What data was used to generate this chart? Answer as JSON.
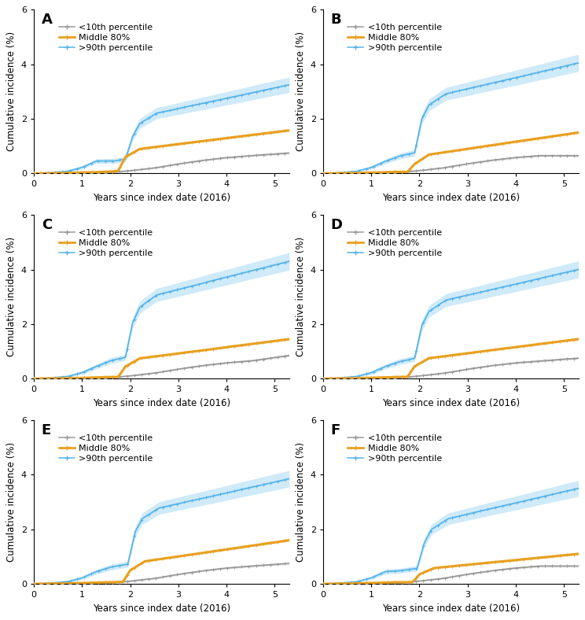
{
  "panels": [
    "A",
    "B",
    "C",
    "D",
    "E",
    "F"
  ],
  "xlabel": "Years since index date (2016)",
  "ylabel": "Cumulative incidence (%)",
  "ylim": [
    0,
    6
  ],
  "xlim": [
    0,
    5.3
  ],
  "yticks": [
    0,
    2,
    4,
    6
  ],
  "xticks": [
    0,
    1,
    2,
    3,
    4,
    5
  ],
  "colors": {
    "low": "#999999",
    "mid": "#E8A020",
    "high": "#56B4E9"
  },
  "ci_colors": {
    "low": "#BBBBBB",
    "mid": "#F0C060",
    "high": "#ACD8F0"
  },
  "legend_labels": [
    "<10th percentile",
    "Middle 80%",
    ">90th percentile"
  ],
  "panels_config": {
    "A": {
      "high_final": 3.25,
      "high_at_jump": 1.35,
      "high_jump_t": 2.05,
      "mid_final": 1.58,
      "mid_jump_t": 1.9,
      "mid_at_jump": 0.6,
      "low_final": 0.75,
      "low_slow_start": true
    },
    "B": {
      "high_final": 4.05,
      "high_at_jump": 2.0,
      "high_jump_t": 2.05,
      "mid_final": 1.5,
      "mid_jump_t": 1.9,
      "mid_at_jump": 0.35,
      "low_final": 0.45,
      "low_slow_start": true
    },
    "C": {
      "high_final": 4.3,
      "high_at_jump": 2.05,
      "high_jump_t": 2.05,
      "mid_final": 1.45,
      "mid_jump_t": 1.9,
      "mid_at_jump": 0.45,
      "low_final": 0.85,
      "low_slow_start": true
    },
    "D": {
      "high_final": 4.0,
      "high_at_jump": 1.95,
      "high_jump_t": 2.05,
      "mid_final": 1.45,
      "mid_jump_t": 1.9,
      "mid_at_jump": 0.45,
      "low_final": 0.75,
      "low_slow_start": true
    },
    "E": {
      "high_final": 3.85,
      "high_at_jump": 1.9,
      "high_jump_t": 2.1,
      "mid_final": 1.6,
      "mid_jump_t": 2.0,
      "mid_at_jump": 0.5,
      "low_final": 0.75,
      "low_slow_start": true
    },
    "F": {
      "high_final": 3.5,
      "high_at_jump": 1.5,
      "high_jump_t": 2.1,
      "mid_final": 1.1,
      "mid_jump_t": 2.0,
      "mid_at_jump": 0.35,
      "low_final": 0.55,
      "low_slow_start": true
    }
  },
  "background_color": "#FFFFFF",
  "panel_label_fontsize": 13,
  "axis_label_fontsize": 8.5,
  "tick_fontsize": 8,
  "legend_fontsize": 8
}
